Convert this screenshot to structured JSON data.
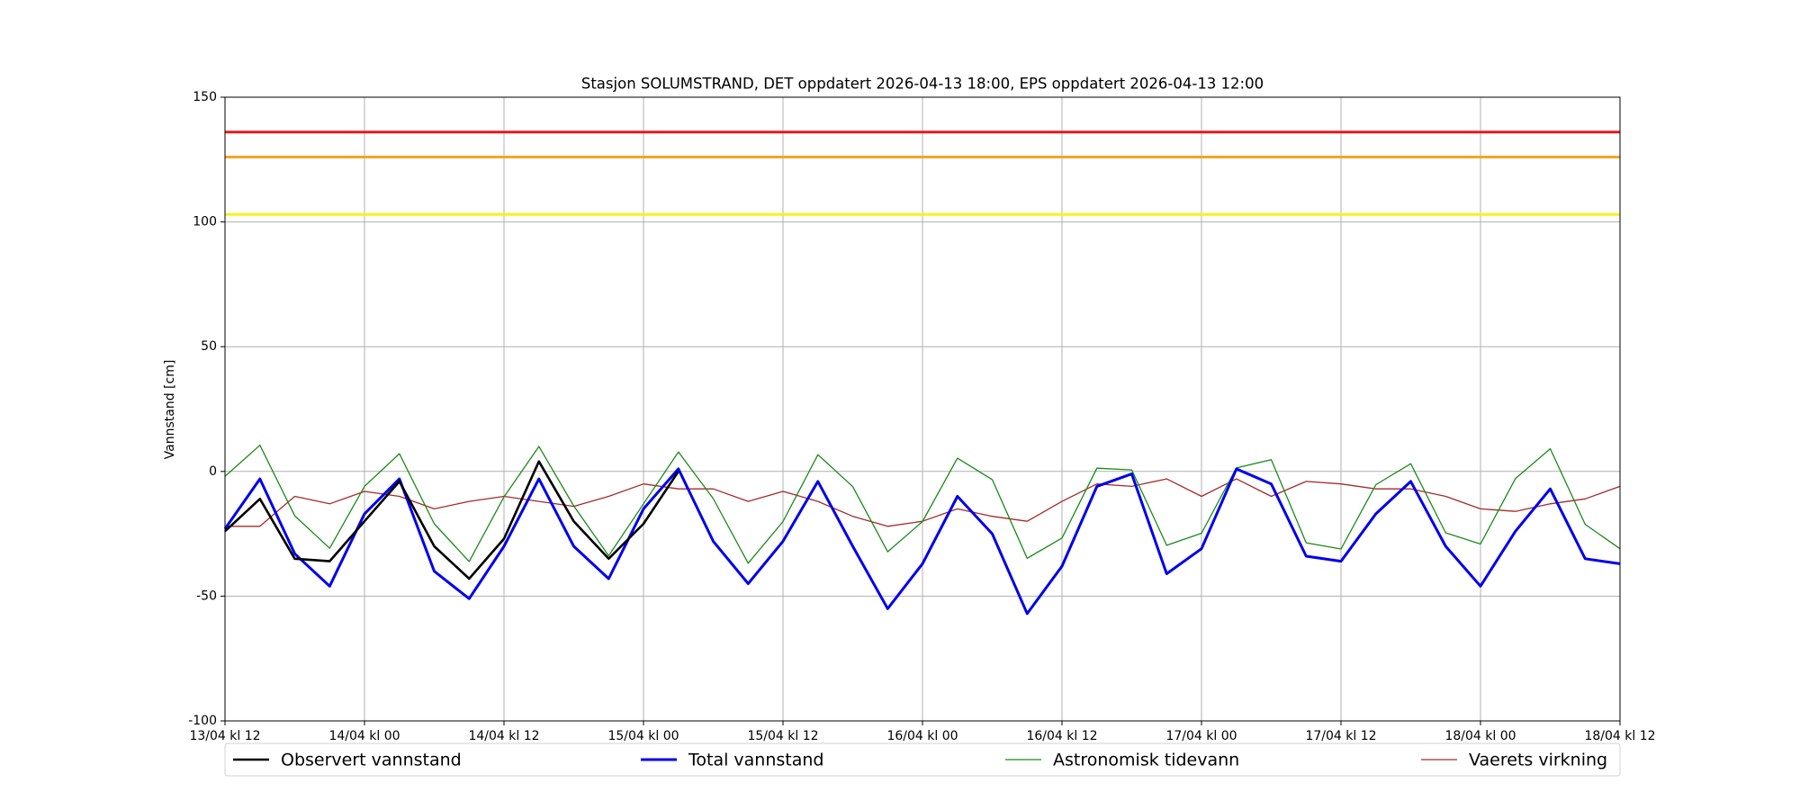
{
  "chart_data": {
    "type": "line",
    "title": "Stasjon SOLUMSTRAND, DET oppdatert 2026-04-13 18:00, EPS oppdatert 2026-04-13 12:00",
    "ylabel": "Vannstand [cm]",
    "x": [
      0,
      3,
      6,
      9,
      12,
      15,
      18,
      21,
      24,
      27,
      30,
      33,
      36,
      39,
      42,
      45,
      48,
      51,
      54,
      57,
      60,
      63,
      66,
      69,
      72,
      75,
      78,
      81,
      84,
      87,
      90,
      93,
      96,
      99,
      102,
      105,
      108,
      111,
      114,
      117,
      120
    ],
    "xlim": [
      0,
      120
    ],
    "xticks": [
      {
        "value": 0,
        "label": "13/04 kl 12"
      },
      {
        "value": 12,
        "label": "14/04 kl 00"
      },
      {
        "value": 24,
        "label": "14/04 kl 12"
      },
      {
        "value": 36,
        "label": "15/04 kl 00"
      },
      {
        "value": 48,
        "label": "15/04 kl 12"
      },
      {
        "value": 60,
        "label": "16/04 kl 00"
      },
      {
        "value": 72,
        "label": "16/04 kl 12"
      },
      {
        "value": 84,
        "label": "17/04 kl 00"
      },
      {
        "value": 96,
        "label": "17/04 kl 12"
      },
      {
        "value": 108,
        "label": "18/04 kl 00"
      },
      {
        "value": 120,
        "label": "18/04 kl 12"
      }
    ],
    "ylim": [
      -100,
      150
    ],
    "yticks": [
      -100,
      -50,
      0,
      50,
      100,
      150
    ],
    "grid": true,
    "hlines": [
      {
        "value": 136,
        "color": "#e8191c"
      },
      {
        "value": 126,
        "color": "#f5a623"
      },
      {
        "value": 103,
        "color": "#f4f41c"
      }
    ],
    "series": [
      {
        "name": "Observert vannstand",
        "color": "#000000",
        "width": 2.6,
        "values": [
          -24,
          -11,
          -35,
          -36,
          -20,
          -4,
          -30,
          -43,
          -27,
          4,
          -20,
          -35,
          -21,
          0,
          null,
          null,
          null,
          null,
          null,
          null,
          null,
          null,
          null,
          null,
          null,
          null,
          null,
          null,
          null,
          null,
          null,
          null,
          null,
          null,
          null,
          null,
          null,
          null,
          null,
          null,
          null
        ]
      },
      {
        "name": "Total vannstand",
        "color": "#0000ee",
        "width": 3,
        "values": [
          -23,
          -3,
          -33,
          -46,
          -17,
          -3,
          -40,
          -51,
          -30,
          -3,
          -30,
          -43,
          -15,
          1,
          -28,
          -45,
          -28,
          -4,
          -30,
          -55,
          -37,
          -10,
          -25,
          -57,
          -38,
          -6,
          -1,
          -41,
          -31,
          1,
          -5,
          -34,
          -36,
          -17,
          -4,
          -30,
          -46,
          -24,
          -7,
          -35,
          -37
        ]
      },
      {
        "name": "Astronomisk tidevann",
        "color": "#1a8a1a",
        "width": 1.3,
        "values": [
          -2,
          10.5,
          -17.8,
          -30.8,
          -6,
          7.1,
          -21,
          -36.1,
          -10.2,
          10,
          -13.8,
          -33.8,
          -13,
          7.8,
          -10.9,
          -36.8,
          -20.1,
          6.7,
          -6.1,
          -32.2,
          -20.1,
          5.3,
          -3.3,
          -34.8,
          -26.7,
          1.3,
          0.6,
          -29.6,
          -24.8,
          1.4,
          4.7,
          -28.6,
          -31.1,
          -5.3,
          3.1,
          -24.6,
          -29.1,
          -2.9,
          9.1,
          -21.2,
          -31
        ]
      },
      {
        "name": "Vaerets virkning",
        "color": "#a52a2a",
        "width": 1.3,
        "values": [
          -22,
          -22,
          -10,
          -13,
          -8,
          -10,
          -15,
          -12,
          -10,
          -12,
          -14,
          -10,
          -5,
          -7,
          -7,
          -12,
          -8,
          -12,
          -18,
          -22,
          -20,
          -15,
          -18,
          -20,
          -12,
          -5,
          -6,
          -3,
          -10,
          -3,
          -10,
          -4,
          -5,
          -7,
          -7,
          -10,
          -15,
          -16,
          -13,
          -11,
          -6
        ]
      }
    ]
  }
}
